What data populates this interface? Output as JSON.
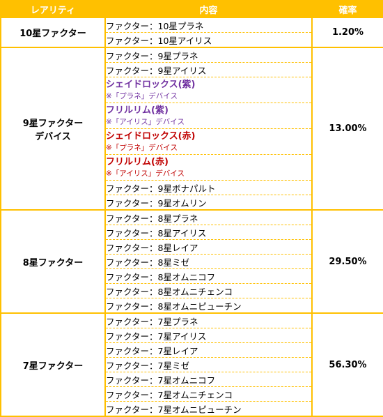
{
  "headers": {
    "rarity": "レアリティ",
    "content": "内容",
    "rate": "確率"
  },
  "colors": {
    "accent": "#ffc000",
    "purple": "#7030a0",
    "red": "#c00000"
  },
  "groups": [
    {
      "rarity": [
        "10星ファクター"
      ],
      "rate": "1.20%",
      "items": [
        {
          "text": "ファクター：10星プラネ"
        },
        {
          "text": "ファクター：10星アイリス"
        }
      ]
    },
    {
      "rarity": [
        "9星ファクター",
        "デバイス"
      ],
      "rate": "13.00%",
      "items": [
        {
          "text": "ファクター：9星プラネ"
        },
        {
          "text": "ファクター：9星アイリス"
        },
        {
          "device": "シェイドロックス(紫)",
          "note": "※「プラネ」デバイス",
          "color": "purple"
        },
        {
          "device": "フリルリム(紫)",
          "note": "※「アイリス」デバイス",
          "color": "purple"
        },
        {
          "device": "シェイドロックス(赤)",
          "note": "※「プラネ」デバイス",
          "color": "red"
        },
        {
          "device": "フリルリム(赤)",
          "note": "※「アイリス」デバイス",
          "color": "red"
        },
        {
          "text": "ファクター：9星ボナパルト"
        },
        {
          "text": "ファクター：9星オムリン"
        }
      ]
    },
    {
      "rarity": [
        "8星ファクター"
      ],
      "rate": "29.50%",
      "items": [
        {
          "text": "ファクター：8星プラネ"
        },
        {
          "text": "ファクター：8星アイリス"
        },
        {
          "text": "ファクター：8星レイア"
        },
        {
          "text": "ファクター：8星ミゼ"
        },
        {
          "text": "ファクター：8星オムニコフ"
        },
        {
          "text": "ファクター：8星オムニチェンコ"
        },
        {
          "text": "ファクター：8星オムニピューチン"
        }
      ]
    },
    {
      "rarity": [
        "7星ファクター"
      ],
      "rate": "56.30%",
      "items": [
        {
          "text": "ファクター：7星プラネ"
        },
        {
          "text": "ファクター：7星アイリス"
        },
        {
          "text": "ファクター：7星レイア"
        },
        {
          "text": "ファクター：7星ミゼ"
        },
        {
          "text": "ファクター：7星オムニコフ"
        },
        {
          "text": "ファクター：7星オムニチェンコ"
        },
        {
          "text": "ファクター：7星オムニピューチン"
        }
      ]
    }
  ]
}
